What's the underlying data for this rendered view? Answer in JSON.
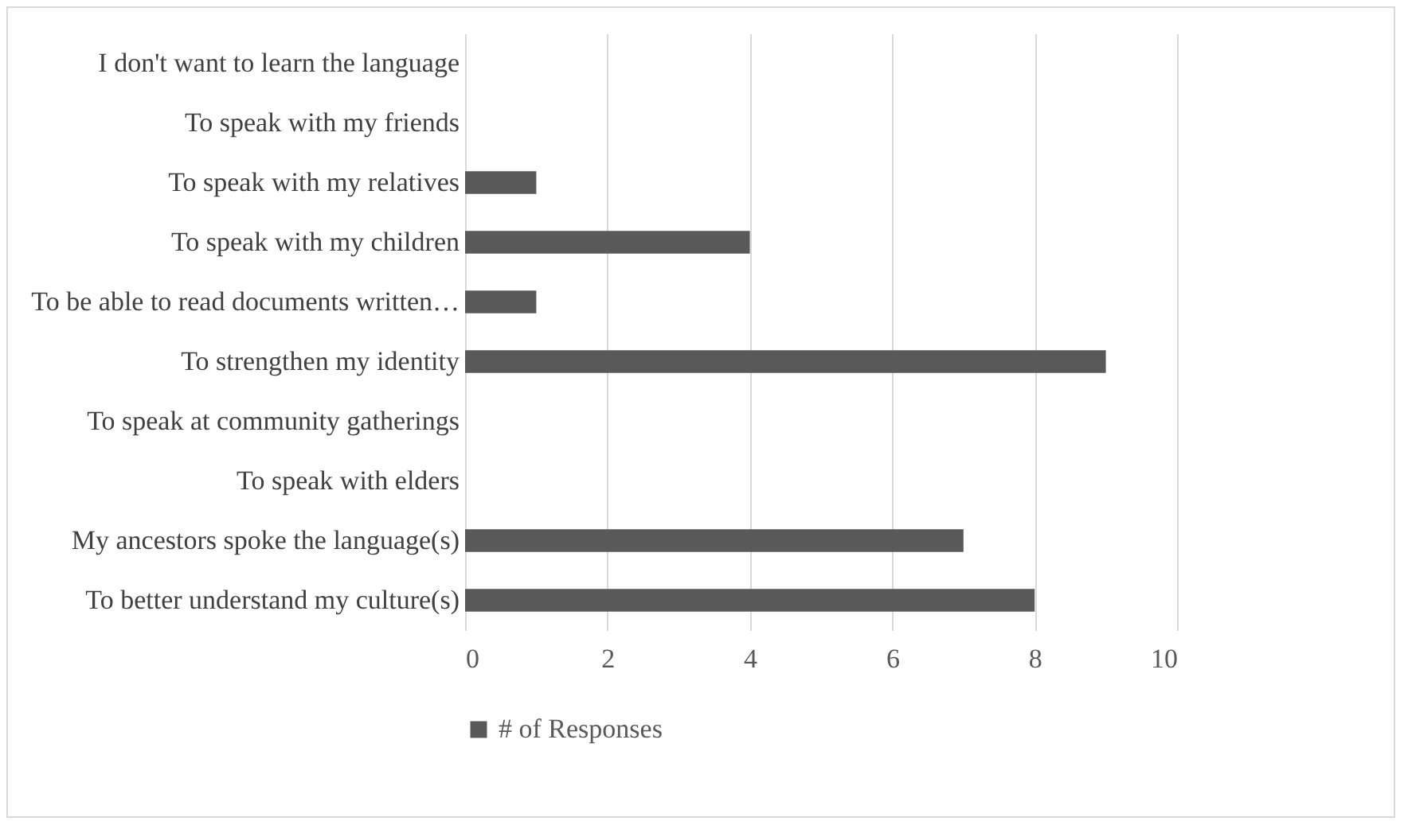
{
  "chart_data": {
    "type": "bar",
    "orientation": "horizontal",
    "categories": [
      "I don't want to learn the language",
      "To speak with my friends",
      "To speak with my relatives",
      "To speak with my children",
      "To be able to read documents written…",
      "To strengthen my identity",
      "To speak at community gatherings",
      "To speak with elders",
      "My ancestors spoke the language(s)",
      "To better understand my culture(s)"
    ],
    "series": [
      {
        "name": "# of Responses",
        "color": "#595959",
        "values": [
          0,
          0,
          1,
          4,
          1,
          9,
          0,
          0,
          7,
          8
        ]
      }
    ],
    "xlim": [
      0,
      10
    ],
    "xticks": [
      0,
      2,
      4,
      6,
      8,
      10
    ],
    "grid": "x",
    "legend": "bottom"
  }
}
